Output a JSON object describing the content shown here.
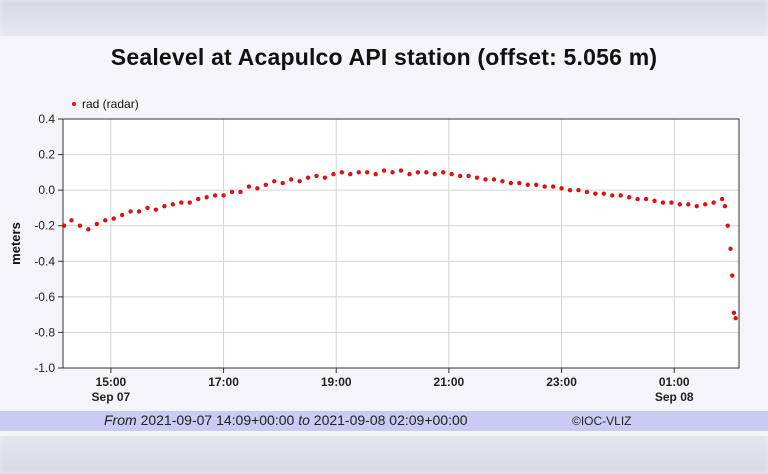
{
  "header": {
    "title": "Sealevel at Acapulco API station (offset: 5.056 m)"
  },
  "footer": {
    "from_word": "From",
    "from_value": "2021-09-07 14:09+00:00",
    "to_word": "to",
    "to_value": "2021-09-08 02:09+00:00",
    "credit": "©IOC-VLIZ"
  },
  "colors": {
    "series": "#dd1111",
    "grid": "#d4d4d4",
    "footer_bar": "#c9cbf2"
  },
  "chart_data": {
    "type": "scatter",
    "title": "Sealevel at Acapulco API station (offset: 5.056 m)",
    "ylabel": "meters",
    "xlabel": "",
    "xlim": [
      14.15,
      26.15
    ],
    "ylim": [
      -1.0,
      0.4
    ],
    "grid": true,
    "legend_position": "top-left",
    "yticks": [
      {
        "value": 0.4,
        "label": "0.4"
      },
      {
        "value": 0.2,
        "label": "0.2"
      },
      {
        "value": 0.0,
        "label": "0.0"
      },
      {
        "value": -0.2,
        "label": "-0.2"
      },
      {
        "value": -0.4,
        "label": "-0.4"
      },
      {
        "value": -0.6,
        "label": "-0.6"
      },
      {
        "value": -0.8,
        "label": "-0.8"
      },
      {
        "value": -1.0,
        "label": "-1.0"
      }
    ],
    "xticks": [
      {
        "value": 15,
        "label": "15:00",
        "date": "Sep 07"
      },
      {
        "value": 17,
        "label": "17:00",
        "date": ""
      },
      {
        "value": 19,
        "label": "19:00",
        "date": ""
      },
      {
        "value": 21,
        "label": "21:00",
        "date": ""
      },
      {
        "value": 23,
        "label": "23:00",
        "date": ""
      },
      {
        "value": 25,
        "label": "01:00",
        "date": "Sep 08"
      }
    ],
    "series": [
      {
        "name": "rad (radar)",
        "x": [
          14.17,
          14.3,
          14.45,
          14.6,
          14.75,
          14.9,
          15.05,
          15.2,
          15.35,
          15.5,
          15.65,
          15.8,
          15.95,
          16.1,
          16.25,
          16.4,
          16.55,
          16.7,
          16.85,
          17.0,
          17.15,
          17.3,
          17.45,
          17.6,
          17.75,
          17.9,
          18.05,
          18.2,
          18.35,
          18.5,
          18.65,
          18.8,
          18.95,
          19.1,
          19.25,
          19.4,
          19.55,
          19.7,
          19.85,
          20.0,
          20.15,
          20.3,
          20.45,
          20.6,
          20.75,
          20.9,
          21.05,
          21.2,
          21.35,
          21.5,
          21.65,
          21.8,
          21.95,
          22.1,
          22.25,
          22.4,
          22.55,
          22.7,
          22.85,
          23.0,
          23.15,
          23.3,
          23.45,
          23.6,
          23.75,
          23.9,
          24.05,
          24.2,
          24.35,
          24.5,
          24.65,
          24.8,
          24.95,
          25.1,
          25.25,
          25.4,
          25.55,
          25.7,
          25.85,
          25.9,
          25.95,
          26.0,
          26.03,
          26.06,
          26.09
        ],
        "y": [
          -0.2,
          -0.17,
          -0.2,
          -0.22,
          -0.19,
          -0.17,
          -0.16,
          -0.14,
          -0.12,
          -0.12,
          -0.1,
          -0.11,
          -0.09,
          -0.08,
          -0.07,
          -0.07,
          -0.05,
          -0.04,
          -0.03,
          -0.03,
          -0.01,
          -0.01,
          0.02,
          0.01,
          0.03,
          0.05,
          0.04,
          0.06,
          0.05,
          0.07,
          0.08,
          0.07,
          0.09,
          0.1,
          0.09,
          0.1,
          0.1,
          0.09,
          0.11,
          0.1,
          0.11,
          0.09,
          0.1,
          0.1,
          0.09,
          0.1,
          0.09,
          0.08,
          0.08,
          0.07,
          0.06,
          0.06,
          0.05,
          0.04,
          0.04,
          0.03,
          0.03,
          0.02,
          0.02,
          0.01,
          0.0,
          0.0,
          -0.01,
          -0.02,
          -0.02,
          -0.03,
          -0.03,
          -0.04,
          -0.05,
          -0.05,
          -0.06,
          -0.07,
          -0.07,
          -0.08,
          -0.08,
          -0.09,
          -0.08,
          -0.07,
          -0.05,
          -0.09,
          -0.2,
          -0.33,
          -0.48,
          -0.69,
          -0.72
        ]
      }
    ]
  }
}
